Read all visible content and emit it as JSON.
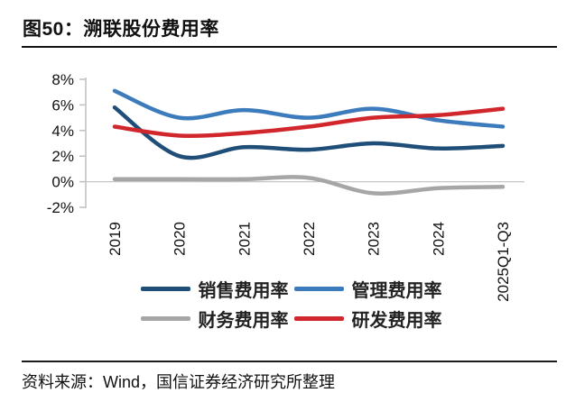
{
  "header": {
    "title": "图50：溯联股份费用率"
  },
  "footer": {
    "source": "资料来源：Wind，国信证券经济研究所整理"
  },
  "chart_data": {
    "type": "line",
    "title": "溯联股份费用率",
    "categories": [
      "2019",
      "2020",
      "2021",
      "2022",
      "2023",
      "2024",
      "2025Q1-Q3"
    ],
    "unit": "%",
    "series": [
      {
        "name": "销售费用率",
        "color": "#1F4E79",
        "values": [
          5.8,
          2.0,
          2.7,
          2.5,
          3.0,
          2.6,
          2.8
        ]
      },
      {
        "name": "管理费用率",
        "color": "#3D7CBC",
        "values": [
          7.1,
          5.0,
          5.6,
          5.0,
          5.7,
          4.8,
          4.3
        ]
      },
      {
        "name": "财务费用率",
        "color": "#A6A6A6",
        "values": [
          0.2,
          0.2,
          0.2,
          0.3,
          -0.9,
          -0.5,
          -0.4
        ]
      },
      {
        "name": "研发费用率",
        "color": "#D0262C",
        "values": [
          4.3,
          3.6,
          3.8,
          4.3,
          5.0,
          5.2,
          5.7
        ]
      }
    ],
    "yticks": {
      "labels": [
        "8%",
        "6%",
        "4%",
        "2%",
        "0%",
        "-2%"
      ],
      "values": [
        8,
        6,
        4,
        2,
        0,
        -2
      ]
    },
    "ylim": [
      -2,
      8
    ],
    "legend_position": "bottom",
    "grid": "zero-line-only",
    "axis_color": "#BFBFBF",
    "zero_line_color": "#C6C6C6",
    "tick_label_color": "#111111"
  }
}
